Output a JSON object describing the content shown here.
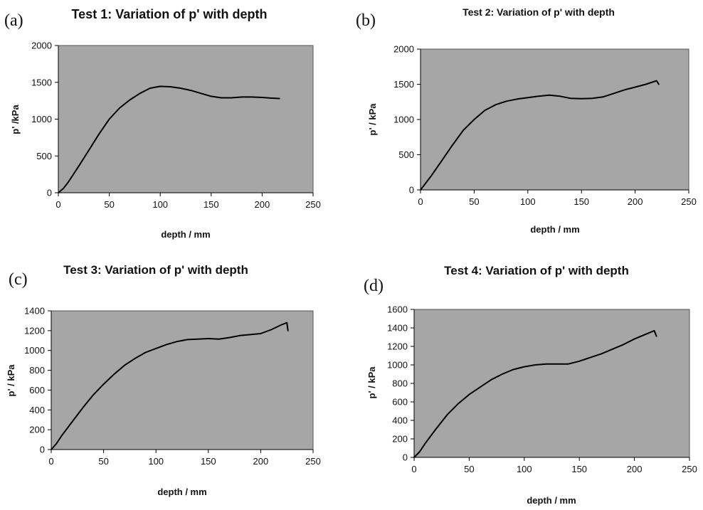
{
  "chart_data": [
    {
      "panel": "(a)",
      "type": "line",
      "title": "Test 1: Variation of p' with depth",
      "xlabel": "depth / mm",
      "ylabel": "p' /kPa",
      "xlim": [
        0,
        250
      ],
      "ylim": [
        0,
        2000
      ],
      "xticks": [
        0,
        50,
        100,
        150,
        200,
        250
      ],
      "yticks": [
        0,
        500,
        1000,
        1500,
        2000
      ],
      "grid": false,
      "plot_background": "#a6a6a6",
      "line_color": "#000000",
      "series": [
        {
          "x": [
            0,
            5,
            10,
            20,
            30,
            40,
            50,
            60,
            70,
            80,
            90,
            100,
            110,
            120,
            130,
            140,
            150,
            160,
            170,
            180,
            190,
            200,
            210,
            217
          ],
          "y": [
            0,
            60,
            150,
            360,
            580,
            800,
            1000,
            1150,
            1260,
            1350,
            1420,
            1445,
            1440,
            1420,
            1390,
            1350,
            1310,
            1290,
            1290,
            1300,
            1300,
            1295,
            1285,
            1280
          ]
        }
      ]
    },
    {
      "panel": "(b)",
      "type": "line",
      "title": "Test 2: Variation of p' with depth",
      "xlabel": "depth / mm",
      "ylabel": "p' / kPa",
      "xlim": [
        0,
        250
      ],
      "ylim": [
        0,
        2000
      ],
      "xticks": [
        0,
        50,
        100,
        150,
        200,
        250
      ],
      "yticks": [
        0,
        500,
        1000,
        1500,
        2000
      ],
      "grid": false,
      "plot_background": "#a6a6a6",
      "line_color": "#000000",
      "series": [
        {
          "x": [
            0,
            5,
            10,
            20,
            30,
            40,
            50,
            60,
            70,
            80,
            90,
            100,
            110,
            120,
            130,
            140,
            150,
            160,
            170,
            180,
            190,
            200,
            210,
            220,
            222
          ],
          "y": [
            0,
            100,
            200,
            420,
            640,
            850,
            1000,
            1130,
            1210,
            1260,
            1290,
            1310,
            1330,
            1345,
            1330,
            1300,
            1295,
            1300,
            1320,
            1370,
            1420,
            1460,
            1500,
            1550,
            1500
          ]
        }
      ]
    },
    {
      "panel": "(c)",
      "type": "line",
      "title": "Test 3: Variation of p' with depth",
      "xlabel": "depth / mm",
      "ylabel": "p' / kPa",
      "xlim": [
        0,
        250
      ],
      "ylim": [
        0,
        1400
      ],
      "xticks": [
        0,
        50,
        100,
        150,
        200,
        250
      ],
      "yticks": [
        0,
        200,
        400,
        600,
        800,
        1000,
        1200,
        1400
      ],
      "grid": false,
      "plot_background": "#a6a6a6",
      "line_color": "#000000",
      "series": [
        {
          "x": [
            0,
            5,
            10,
            20,
            30,
            40,
            50,
            60,
            70,
            80,
            90,
            100,
            110,
            120,
            130,
            140,
            150,
            160,
            170,
            180,
            190,
            200,
            210,
            220,
            225,
            226
          ],
          "y": [
            0,
            60,
            140,
            280,
            420,
            550,
            660,
            760,
            850,
            920,
            980,
            1020,
            1060,
            1090,
            1110,
            1115,
            1120,
            1115,
            1130,
            1150,
            1160,
            1170,
            1210,
            1260,
            1280,
            1200
          ]
        }
      ]
    },
    {
      "panel": "(d)",
      "type": "line",
      "title": "Test 4: Variation of p' with depth",
      "xlabel": "depth / mm",
      "ylabel": "p' / kPa",
      "xlim": [
        0,
        250
      ],
      "ylim": [
        0,
        1600
      ],
      "xticks": [
        0,
        50,
        100,
        150,
        200,
        250
      ],
      "yticks": [
        0,
        200,
        400,
        600,
        800,
        1000,
        1200,
        1400,
        1600
      ],
      "grid": false,
      "plot_background": "#a6a6a6",
      "line_color": "#000000",
      "series": [
        {
          "x": [
            0,
            5,
            10,
            20,
            30,
            40,
            50,
            60,
            70,
            80,
            90,
            100,
            110,
            120,
            130,
            140,
            150,
            160,
            170,
            180,
            190,
            200,
            210,
            218,
            220
          ],
          "y": [
            0,
            60,
            150,
            310,
            460,
            580,
            680,
            760,
            840,
            900,
            950,
            980,
            1000,
            1010,
            1010,
            1010,
            1040,
            1080,
            1120,
            1170,
            1220,
            1280,
            1330,
            1370,
            1310
          ]
        }
      ]
    }
  ]
}
